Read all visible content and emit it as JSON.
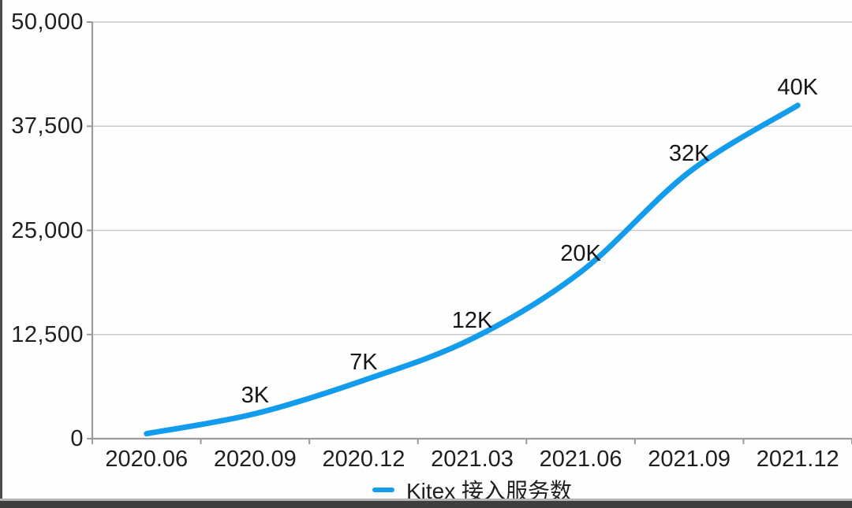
{
  "chart_data": {
    "type": "line",
    "title": "",
    "categories": [
      "2020.06",
      "2020.09",
      "2020.12",
      "2021.03",
      "2021.06",
      "2021.09",
      "2021.12"
    ],
    "series": [
      {
        "name": "Kitex 接入服务数",
        "values": [
          600,
          3000,
          7000,
          12000,
          20000,
          32000,
          40000
        ],
        "point_labels": [
          "",
          "3K",
          "7K",
          "12K",
          "20K",
          "32K",
          "40K"
        ],
        "color": "#149cec"
      }
    ],
    "ylim": [
      0,
      50000
    ],
    "ytick_values": [
      0,
      12500,
      25000,
      37500,
      50000
    ],
    "ytick_labels": [
      "0",
      "12,500",
      "25,000",
      "37,500",
      "50,000"
    ],
    "grid": "horizontal",
    "legend_position": "bottom",
    "colors": {
      "gridline": "#c9c9c9",
      "axis": "#9b9b9b",
      "text": "#1f1f1f"
    }
  },
  "window": {
    "left_edge_color": "#4b4b4b",
    "bottom_divider_color": "#b5b5b5",
    "bottom_bar_color": "#3e3e3e"
  }
}
